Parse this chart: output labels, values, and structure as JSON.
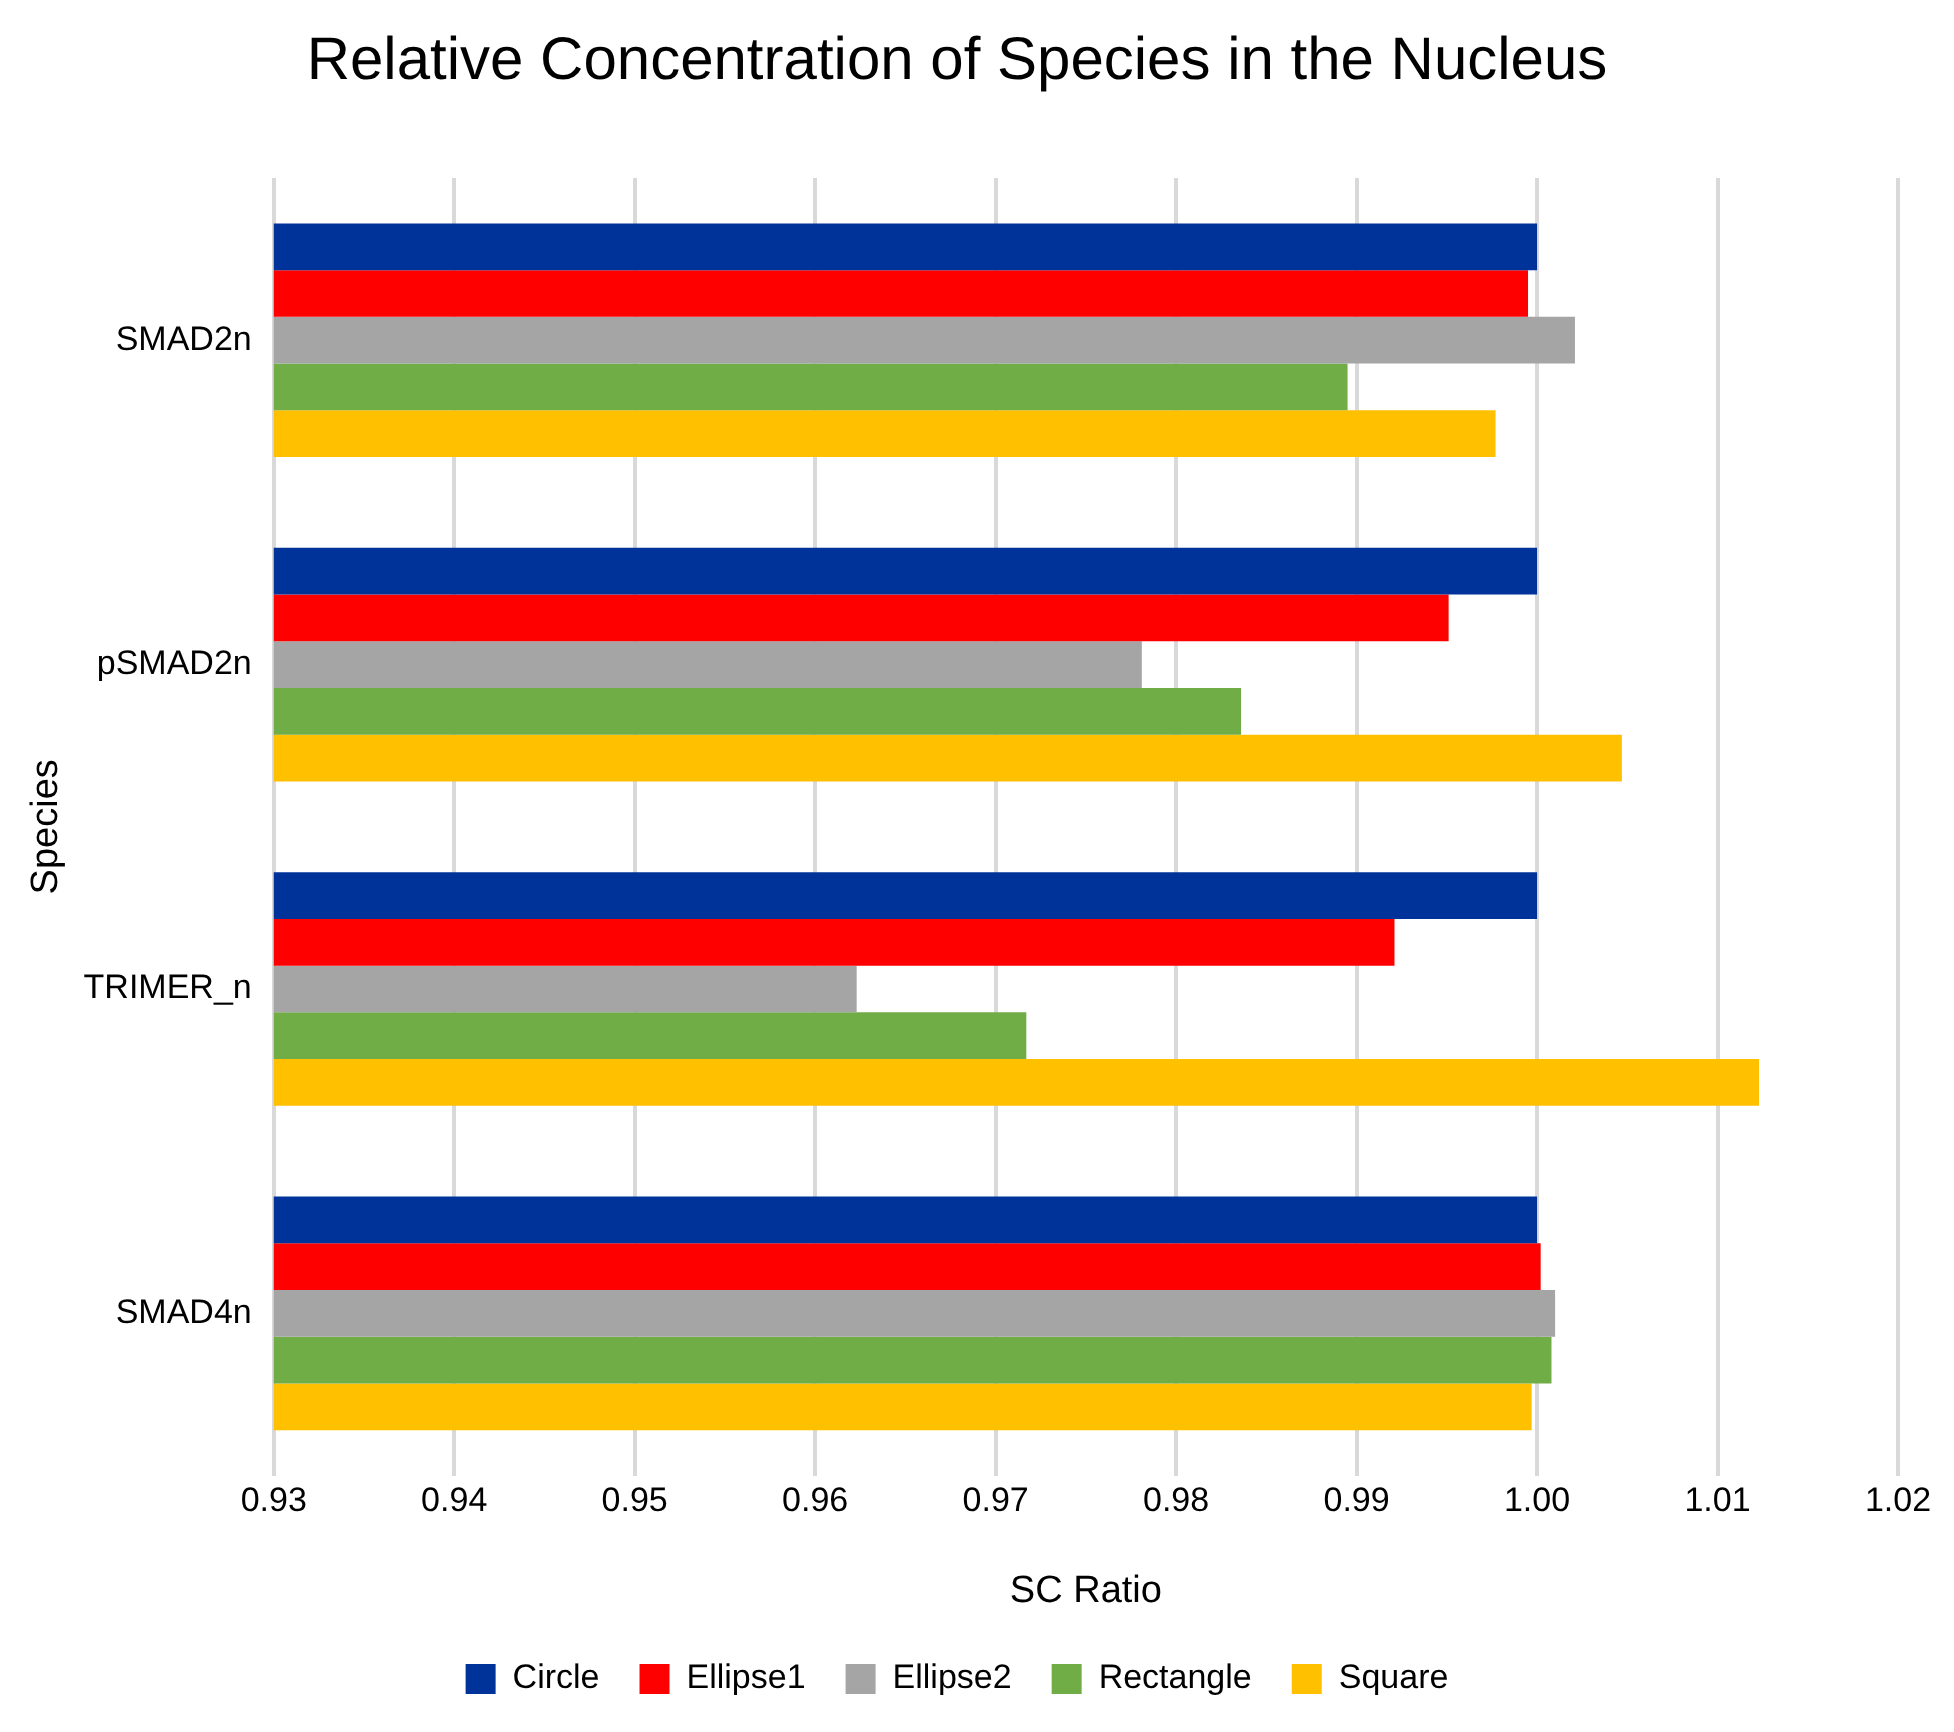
{
  "chart_data": {
    "type": "bar",
    "orientation": "horizontal",
    "title": "Relative Concentration of Species in the Nucleus",
    "xlabel": "SC Ratio",
    "ylabel": "Species",
    "categories": [
      "SMAD2n",
      "pSMAD2n",
      "TRIMER_n",
      "SMAD4n"
    ],
    "series": [
      {
        "name": "Circle",
        "color": "#003399",
        "values": [
          1.0,
          1.0,
          1.0,
          1.0
        ]
      },
      {
        "name": "Ellipse1",
        "color": "#ff0000",
        "values": [
          0.9995,
          0.9951,
          0.9921,
          1.0002
        ]
      },
      {
        "name": "Ellipse2",
        "color": "#a5a5a5",
        "values": [
          1.0021,
          0.9781,
          0.9623,
          1.001
        ]
      },
      {
        "name": "Rectangle",
        "color": "#70ad47",
        "values": [
          0.9895,
          0.9836,
          0.9717,
          1.0008
        ]
      },
      {
        "name": "Square",
        "color": "#ffc000",
        "values": [
          0.9977,
          1.0047,
          1.0123,
          0.9997
        ]
      }
    ],
    "xlim": [
      0.93,
      1.02
    ],
    "xticks": [
      0.93,
      0.94,
      0.95,
      0.96,
      0.97,
      0.98,
      0.99,
      {
        "value": 1.0,
        "label": "1.00"
      },
      1.01,
      1.02
    ],
    "grid": "x",
    "legend": "bottom"
  }
}
